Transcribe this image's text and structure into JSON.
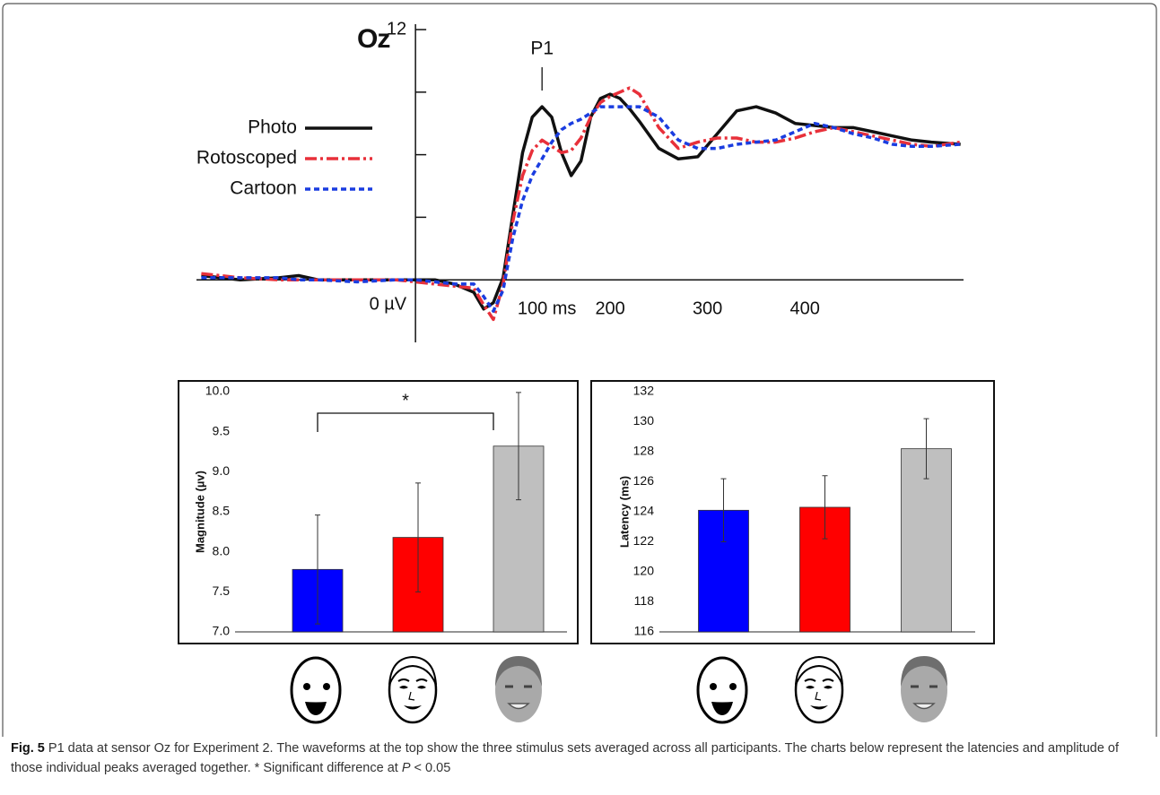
{
  "chart_data": [
    {
      "type": "line",
      "title": "Oz",
      "x": [
        -220,
        -180,
        -140,
        -120,
        -100,
        -60,
        -20,
        0,
        20,
        40,
        60,
        70,
        80,
        90,
        100,
        110,
        120,
        130,
        140,
        150,
        160,
        170,
        180,
        190,
        200,
        210,
        220,
        230,
        250,
        270,
        290,
        310,
        330,
        350,
        370,
        390,
        410,
        430,
        450,
        470,
        490,
        510,
        530,
        560
      ],
      "series": [
        {
          "name": "Photo",
          "color": "#111111",
          "style": "solid",
          "values": [
            0.2,
            0.0,
            0.1,
            0.2,
            0.0,
            0.0,
            0.0,
            0.0,
            0.0,
            -0.2,
            -0.6,
            -1.4,
            -1.1,
            0.1,
            3.1,
            6.1,
            7.8,
            8.3,
            7.8,
            6.1,
            5.0,
            5.7,
            7.8,
            8.7,
            8.9,
            8.7,
            8.2,
            7.6,
            6.3,
            5.8,
            5.9,
            7.0,
            8.1,
            8.3,
            8.0,
            7.5,
            7.4,
            7.3,
            7.3,
            7.1,
            6.9,
            6.7,
            6.6,
            6.5
          ]
        },
        {
          "name": "Rotoscoped",
          "color": "#e8303a",
          "style": "dashdot",
          "values": [
            0.3,
            0.1,
            0.0,
            0.0,
            0.0,
            0.0,
            0.0,
            -0.1,
            -0.2,
            -0.3,
            -0.4,
            -1.2,
            -1.9,
            -0.2,
            2.8,
            5.0,
            6.2,
            6.7,
            6.4,
            6.1,
            6.2,
            6.8,
            7.8,
            8.5,
            8.8,
            9.0,
            9.2,
            8.9,
            7.3,
            6.3,
            6.6,
            6.8,
            6.8,
            6.6,
            6.6,
            6.8,
            7.1,
            7.3,
            7.1,
            6.9,
            6.7,
            6.5,
            6.4,
            6.6
          ]
        },
        {
          "name": "Cartoon",
          "color": "#1a3de0",
          "style": "dotted",
          "values": [
            0.1,
            0.1,
            0.1,
            0.0,
            0.0,
            -0.1,
            0.0,
            0.0,
            -0.1,
            -0.2,
            -0.2,
            -0.8,
            -1.5,
            -0.5,
            2.0,
            3.8,
            5.0,
            5.8,
            6.6,
            7.2,
            7.5,
            7.7,
            8.0,
            8.3,
            8.3,
            8.3,
            8.3,
            8.3,
            7.8,
            6.7,
            6.3,
            6.3,
            6.5,
            6.6,
            6.7,
            7.1,
            7.5,
            7.3,
            7.0,
            6.8,
            6.5,
            6.4,
            6.4,
            6.5
          ]
        }
      ],
      "xlim": [
        -225,
        563
      ],
      "xticks": [
        {
          "value": 100,
          "label": "100 ms"
        },
        200,
        300,
        400
      ],
      "ylim": [
        -3,
        12
      ],
      "yticks": [
        {
          "value": 0,
          "label": "0 µV"
        },
        {
          "value": 3,
          "label": null
        },
        {
          "value": 6,
          "label": null
        },
        {
          "value": 9,
          "label": null
        },
        12
      ],
      "legend": "left",
      "annotations": [
        {
          "text": "P1",
          "x": 130
        }
      ]
    },
    {
      "type": "bar",
      "ylabel": "Magnitude (µv)",
      "values": [
        7.78,
        8.18,
        9.32
      ],
      "errors": [
        0.68,
        0.68,
        0.67
      ],
      "colors": [
        "#0000ff",
        "#ff0000",
        "#bfbfbf"
      ],
      "ylim": [
        7,
        10
      ],
      "yticks": [
        {
          "value": 7,
          "label": "7.0"
        },
        7.5,
        {
          "value": 8,
          "label": "8.0"
        },
        8.5,
        {
          "value": 9,
          "label": "9.0"
        },
        9.5,
        {
          "value": 10,
          "label": "10.0"
        }
      ],
      "annotations": [
        {
          "text": "*",
          "from": 0,
          "to": 2
        }
      ]
    },
    {
      "type": "bar",
      "ylabel": "Latency (ms)",
      "values": [
        124.1,
        124.3,
        128.2
      ],
      "errors": [
        2.1,
        2.1,
        2.0
      ],
      "colors": [
        "#0000ff",
        "#ff0000",
        "#bfbfbf"
      ],
      "ylim": [
        116,
        132
      ],
      "yticks": [
        116,
        118,
        120,
        122,
        124,
        126,
        128,
        130,
        132
      ]
    }
  ],
  "caption": {
    "label": "Fig. 5",
    "text": "P1 data at sensor Oz for Experiment 2. The waveforms at the top show the three stimulus sets averaged across all participants. The charts below represent the latencies and amplitude of those individual peaks averaged together. * Significant difference at ",
    "p": "P",
    "rest": " < 0.05"
  }
}
